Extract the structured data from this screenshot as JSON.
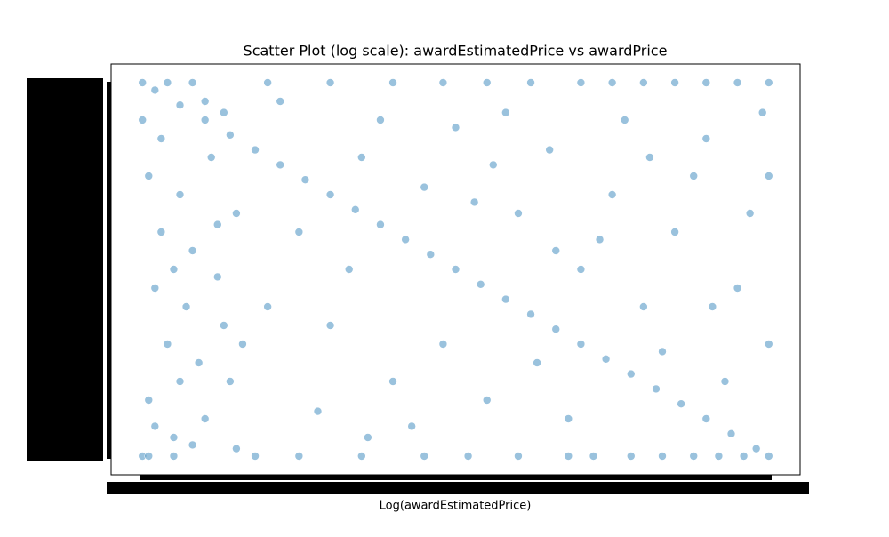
{
  "chart_data": {
    "type": "scatter",
    "title": "Scatter Plot (log scale): awardEstimatedPrice vs awardPrice",
    "xlabel": "Log(awardEstimatedPrice)",
    "color": "#1f77b4",
    "alpha": 0.45,
    "xlim": [
      -5,
      105
    ],
    "ylim": [
      -5,
      105
    ],
    "x": [
      2,
      6,
      10,
      14,
      18,
      22,
      26,
      30,
      34,
      38,
      42,
      46,
      50,
      54,
      58,
      62,
      66,
      70,
      74,
      78,
      82,
      86,
      90,
      94,
      98,
      0,
      1,
      3,
      2,
      4,
      1,
      5,
      6,
      8,
      7,
      9,
      10,
      11,
      12,
      13,
      14,
      3,
      5,
      8,
      12,
      15,
      16,
      0,
      2,
      10,
      6,
      13,
      4,
      1,
      15,
      0,
      8,
      20,
      30,
      40,
      48,
      55,
      62,
      70,
      75,
      80,
      85,
      90,
      95,
      100,
      5,
      18,
      25,
      35,
      45,
      52,
      60,
      68,
      72,
      78,
      83,
      88,
      92,
      96,
      100,
      25,
      30,
      35,
      40,
      45,
      50,
      55,
      60,
      65,
      70,
      75,
      80,
      85,
      90,
      95,
      100,
      20,
      28,
      33,
      38,
      43,
      48,
      53,
      58,
      63,
      68,
      73,
      77,
      83,
      88,
      93,
      97,
      100,
      22,
      36,
      56,
      66,
      81,
      91,
      99
    ],
    "y": [
      98,
      94,
      90,
      86,
      82,
      78,
      74,
      70,
      66,
      62,
      58,
      54,
      50,
      46,
      42,
      38,
      34,
      30,
      26,
      22,
      18,
      14,
      10,
      6,
      2,
      90,
      75,
      60,
      45,
      30,
      15,
      5,
      70,
      55,
      40,
      25,
      10,
      80,
      62,
      35,
      20,
      85,
      50,
      3,
      48,
      65,
      30,
      0,
      8,
      95,
      20,
      92,
      100,
      0,
      2,
      100,
      100,
      100,
      100,
      100,
      100,
      100,
      100,
      100,
      100,
      100,
      100,
      100,
      100,
      100,
      0,
      0,
      0,
      0,
      0,
      0,
      0,
      0,
      0,
      0,
      0,
      0,
      0,
      0,
      0,
      60,
      35,
      80,
      20,
      72,
      88,
      15,
      65,
      82,
      50,
      70,
      40,
      60,
      85,
      45,
      75,
      40,
      12,
      50,
      90,
      8,
      30,
      68,
      92,
      25,
      10,
      58,
      90,
      28,
      75,
      20,
      65,
      30,
      95,
      5,
      78,
      55,
      80,
      40,
      92
    ]
  }
}
